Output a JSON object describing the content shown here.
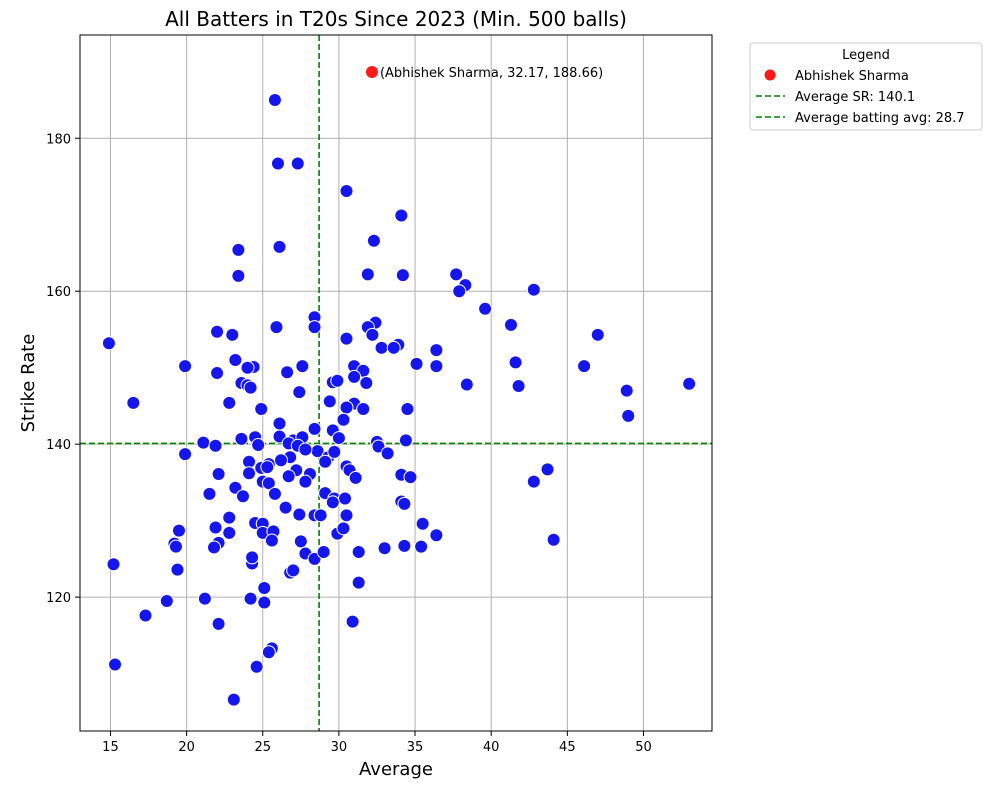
{
  "chart_data": {
    "type": "scatter",
    "title": "All Batters in T20s Since 2023 (Min. 500 balls)",
    "xlabel": "Average",
    "ylabel": "Strike Rate",
    "xlim": [
      13,
      54.5
    ],
    "ylim": [
      102.5,
      193.5
    ],
    "x_ticks": [
      15,
      20,
      25,
      30,
      35,
      40,
      45,
      50
    ],
    "y_ticks": [
      120,
      140,
      160,
      180
    ],
    "grid": true,
    "legend_placement": "outside-top-right",
    "colors": {
      "points": "#1515ee",
      "highlight": "#ff1a1a",
      "reference": "#008000"
    },
    "points": [
      [
        25.8,
        185.0
      ],
      [
        26.0,
        176.7
      ],
      [
        27.3,
        176.7
      ],
      [
        30.5,
        173.1
      ],
      [
        34.1,
        169.9
      ],
      [
        32.3,
        166.6
      ],
      [
        26.1,
        165.8
      ],
      [
        23.4,
        165.4
      ],
      [
        23.4,
        162.0
      ],
      [
        31.9,
        162.2
      ],
      [
        34.2,
        162.1
      ],
      [
        37.7,
        162.2
      ],
      [
        38.3,
        160.8
      ],
      [
        37.9,
        160.0
      ],
      [
        42.8,
        160.2
      ],
      [
        39.6,
        157.7
      ],
      [
        28.4,
        156.6
      ],
      [
        41.3,
        155.6
      ],
      [
        32.4,
        155.9
      ],
      [
        31.9,
        155.3
      ],
      [
        25.9,
        155.3
      ],
      [
        28.4,
        155.3
      ],
      [
        22.0,
        154.7
      ],
      [
        23.0,
        154.3
      ],
      [
        32.2,
        154.3
      ],
      [
        30.5,
        153.8
      ],
      [
        47.0,
        154.3
      ],
      [
        14.9,
        153.2
      ],
      [
        33.9,
        153.0
      ],
      [
        32.8,
        152.6
      ],
      [
        33.6,
        152.6
      ],
      [
        36.4,
        152.3
      ],
      [
        23.2,
        151.0
      ],
      [
        41.6,
        150.7
      ],
      [
        19.9,
        150.2
      ],
      [
        24.4,
        150.1
      ],
      [
        24.0,
        150.0
      ],
      [
        27.6,
        150.2
      ],
      [
        31.0,
        150.2
      ],
      [
        31.6,
        149.6
      ],
      [
        35.1,
        150.5
      ],
      [
        36.4,
        150.2
      ],
      [
        46.1,
        150.2
      ],
      [
        22.0,
        149.3
      ],
      [
        26.6,
        149.4
      ],
      [
        31.0,
        148.8
      ],
      [
        29.6,
        148.1
      ],
      [
        29.9,
        148.3
      ],
      [
        31.8,
        148.0
      ],
      [
        23.6,
        148.0
      ],
      [
        24.0,
        147.7
      ],
      [
        24.2,
        147.4
      ],
      [
        38.4,
        147.8
      ],
      [
        41.8,
        147.6
      ],
      [
        48.9,
        147.0
      ],
      [
        27.4,
        146.8
      ],
      [
        53.0,
        147.9
      ],
      [
        16.5,
        145.4
      ],
      [
        22.8,
        145.4
      ],
      [
        29.4,
        145.6
      ],
      [
        31.0,
        145.3
      ],
      [
        24.9,
        144.6
      ],
      [
        30.5,
        144.8
      ],
      [
        31.6,
        144.6
      ],
      [
        34.5,
        144.6
      ],
      [
        49.0,
        143.7
      ],
      [
        26.1,
        142.7
      ],
      [
        30.3,
        143.2
      ],
      [
        28.4,
        142.0
      ],
      [
        29.6,
        141.8
      ],
      [
        23.6,
        140.7
      ],
      [
        24.5,
        140.9
      ],
      [
        26.1,
        141.0
      ],
      [
        27.0,
        140.5
      ],
      [
        27.6,
        140.9
      ],
      [
        30.0,
        140.8
      ],
      [
        32.5,
        140.3
      ],
      [
        34.4,
        140.5
      ],
      [
        21.1,
        140.2
      ],
      [
        21.9,
        139.8
      ],
      [
        24.7,
        139.9
      ],
      [
        26.7,
        140.1
      ],
      [
        27.3,
        139.8
      ],
      [
        32.6,
        139.7
      ],
      [
        19.9,
        138.7
      ],
      [
        26.8,
        138.3
      ],
      [
        28.6,
        139.1
      ],
      [
        29.3,
        138.3
      ],
      [
        29.7,
        139.0
      ],
      [
        27.8,
        139.3
      ],
      [
        33.2,
        138.8
      ],
      [
        24.1,
        137.7
      ],
      [
        25.4,
        137.4
      ],
      [
        26.2,
        137.9
      ],
      [
        29.1,
        137.7
      ],
      [
        24.9,
        136.9
      ],
      [
        25.3,
        137.0
      ],
      [
        27.2,
        136.6
      ],
      [
        28.1,
        136.1
      ],
      [
        30.5,
        137.1
      ],
      [
        30.7,
        136.6
      ],
      [
        22.1,
        136.1
      ],
      [
        24.1,
        136.2
      ],
      [
        26.7,
        135.8
      ],
      [
        31.1,
        135.6
      ],
      [
        34.1,
        136.0
      ],
      [
        34.7,
        135.7
      ],
      [
        43.7,
        136.7
      ],
      [
        25.0,
        135.1
      ],
      [
        25.4,
        134.9
      ],
      [
        27.8,
        135.1
      ],
      [
        42.8,
        135.1
      ],
      [
        23.2,
        134.3
      ],
      [
        21.5,
        133.5
      ],
      [
        23.7,
        133.2
      ],
      [
        25.8,
        133.5
      ],
      [
        29.1,
        133.6
      ],
      [
        29.7,
        132.9
      ],
      [
        30.4,
        132.9
      ],
      [
        29.6,
        132.4
      ],
      [
        34.1,
        132.5
      ],
      [
        34.3,
        132.2
      ],
      [
        26.5,
        131.7
      ],
      [
        27.4,
        130.8
      ],
      [
        28.4,
        130.7
      ],
      [
        28.8,
        130.7
      ],
      [
        30.5,
        130.7
      ],
      [
        22.8,
        130.4
      ],
      [
        24.5,
        129.7
      ],
      [
        25.0,
        129.6
      ],
      [
        35.5,
        129.6
      ],
      [
        19.5,
        128.7
      ],
      [
        21.9,
        129.1
      ],
      [
        22.8,
        128.4
      ],
      [
        25.0,
        128.4
      ],
      [
        25.7,
        128.6
      ],
      [
        29.9,
        128.3
      ],
      [
        30.3,
        129.0
      ],
      [
        36.4,
        128.1
      ],
      [
        19.2,
        127.0
      ],
      [
        19.3,
        126.6
      ],
      [
        22.1,
        127.1
      ],
      [
        25.6,
        127.4
      ],
      [
        27.5,
        127.3
      ],
      [
        33.0,
        126.4
      ],
      [
        34.3,
        126.7
      ],
      [
        35.4,
        126.6
      ],
      [
        44.1,
        127.5
      ],
      [
        21.8,
        126.5
      ],
      [
        27.8,
        125.7
      ],
      [
        28.4,
        125.0
      ],
      [
        29.0,
        125.9
      ],
      [
        31.3,
        125.9
      ],
      [
        24.3,
        124.4
      ],
      [
        24.3,
        125.2
      ],
      [
        15.2,
        124.3
      ],
      [
        19.4,
        123.6
      ],
      [
        26.8,
        123.2
      ],
      [
        27.0,
        123.5
      ],
      [
        31.3,
        121.9
      ],
      [
        25.1,
        121.2
      ],
      [
        17.3,
        117.6
      ],
      [
        18.7,
        119.5
      ],
      [
        21.2,
        119.8
      ],
      [
        24.2,
        119.8
      ],
      [
        25.1,
        119.3
      ],
      [
        22.1,
        116.5
      ],
      [
        30.9,
        116.8
      ],
      [
        15.3,
        111.2
      ],
      [
        25.6,
        113.3
      ],
      [
        25.4,
        112.8
      ],
      [
        24.6,
        110.9
      ],
      [
        23.1,
        106.6
      ]
    ],
    "highlight": {
      "name": "Abhishek Sharma",
      "x": 32.17,
      "y": 188.66,
      "label": "(Abhishek Sharma, 32.17, 188.66)"
    },
    "reference_lines": {
      "avg_sr": 140.1,
      "avg_batting": 28.7
    }
  },
  "legend": {
    "title": "Legend",
    "items": [
      "Abhishek Sharma",
      "Average SR: 140.1",
      "Average batting avg: 28.7"
    ]
  }
}
